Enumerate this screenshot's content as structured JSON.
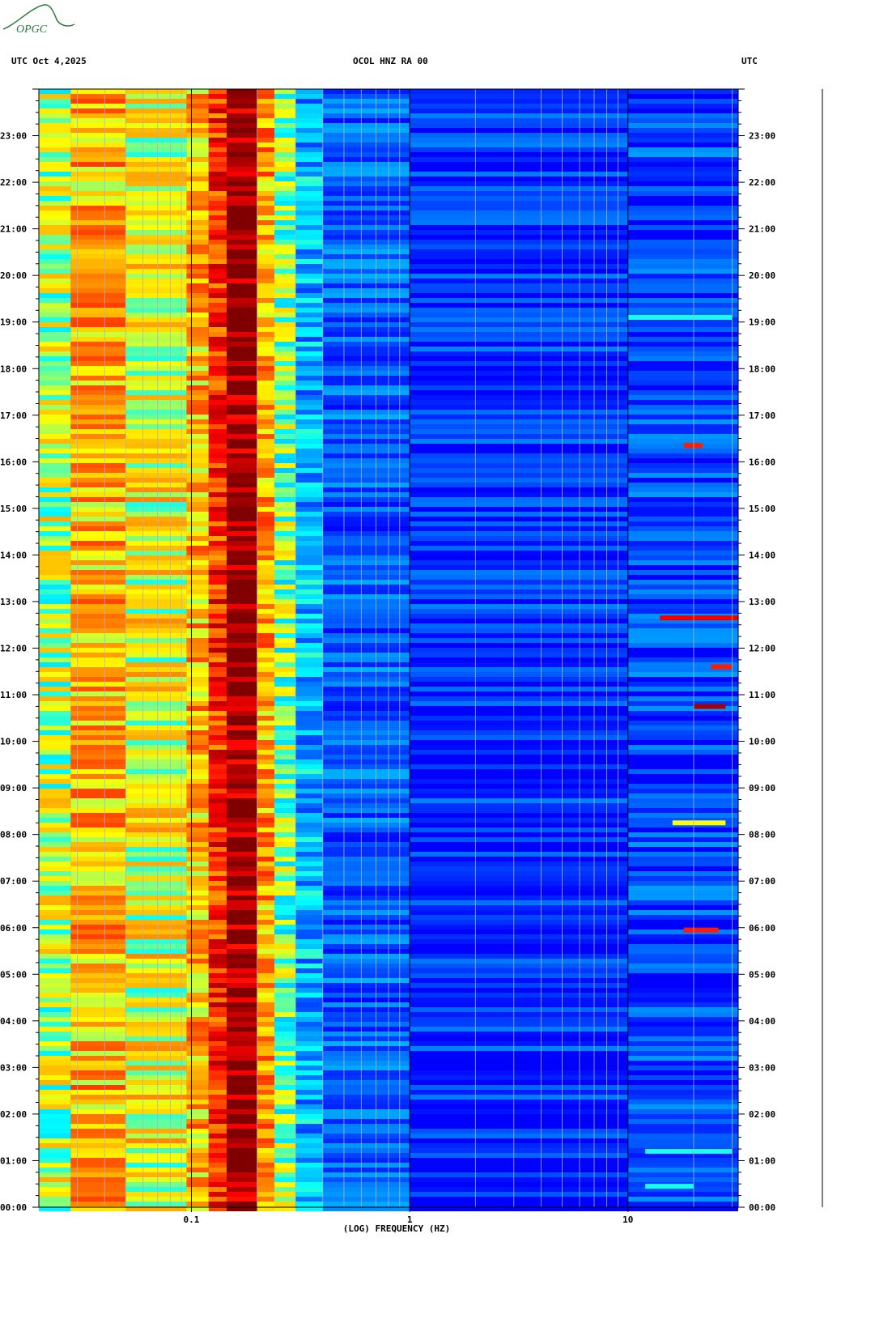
{
  "logo": {
    "text": "OPGC",
    "color": "#2a7a3a"
  },
  "header": {
    "left": "UTC  Oct 4,2025",
    "center": "OCOL HNZ RA 00",
    "right": "UTC"
  },
  "chart_data": {
    "type": "heatmap",
    "title": "OCOL HNZ RA 00",
    "date": "Oct 4,2025",
    "xlabel": "(LOG) FREQUENCY (HZ)",
    "x_scale": "log",
    "xlim": [
      0.02,
      32
    ],
    "x_tick_labels": [
      {
        "value": 0.1,
        "label": "0.1"
      },
      {
        "value": 1,
        "label": "1"
      },
      {
        "value": 10,
        "label": "10"
      }
    ],
    "y_tick_labels": [
      "00:00",
      "01:00",
      "02:00",
      "03:00",
      "04:00",
      "05:00",
      "06:00",
      "07:00",
      "08:00",
      "09:00",
      "10:00",
      "11:00",
      "12:00",
      "13:00",
      "14:00",
      "15:00",
      "16:00",
      "17:00",
      "18:00",
      "19:00",
      "20:00",
      "21:00",
      "22:00",
      "23:00"
    ],
    "ylim_hours": [
      0,
      24
    ],
    "colormap": [
      "#0000ff",
      "#00a0ff",
      "#00ffff",
      "#ffff00",
      "#ff8000",
      "#ff0000",
      "#800000"
    ],
    "bands": [
      {
        "f0": 0.02,
        "f1": 0.028,
        "level": 0.45
      },
      {
        "f0": 0.028,
        "f1": 0.05,
        "level": 0.6
      },
      {
        "f0": 0.05,
        "f1": 0.095,
        "level": 0.5
      },
      {
        "f0": 0.095,
        "f1": 0.12,
        "level": 0.6
      },
      {
        "f0": 0.12,
        "f1": 0.145,
        "level": 0.78
      },
      {
        "f0": 0.145,
        "f1": 0.2,
        "level": 0.97
      },
      {
        "f0": 0.2,
        "f1": 0.24,
        "level": 0.62
      },
      {
        "f0": 0.24,
        "f1": 0.3,
        "level": 0.4
      },
      {
        "f0": 0.3,
        "f1": 0.4,
        "level": 0.22
      },
      {
        "f0": 0.4,
        "f1": 1.0,
        "level": 0.1
      },
      {
        "f0": 1.0,
        "f1": 10,
        "level": 0.04
      },
      {
        "f0": 10,
        "f1": 32,
        "level": 0.07
      }
    ],
    "events": [
      {
        "hour": 12.65,
        "f0": 14,
        "f1": 32,
        "level": 0.85
      },
      {
        "hour": 11.6,
        "f0": 24,
        "f1": 30,
        "level": 0.8
      },
      {
        "hour": 10.75,
        "f0": 20,
        "f1": 28,
        "level": 0.95
      },
      {
        "hour": 16.35,
        "f0": 18,
        "f1": 22,
        "level": 0.8
      },
      {
        "hour": 5.95,
        "f0": 18,
        "f1": 26,
        "level": 0.8
      },
      {
        "hour": 8.25,
        "f0": 16,
        "f1": 28,
        "level": 0.5
      },
      {
        "hour": 19.1,
        "f0": 10,
        "f1": 30,
        "level": 0.35
      },
      {
        "hour": 1.2,
        "f0": 12,
        "f1": 30,
        "level": 0.35
      },
      {
        "hour": 0.45,
        "f0": 12,
        "f1": 20,
        "level": 0.35
      }
    ]
  }
}
